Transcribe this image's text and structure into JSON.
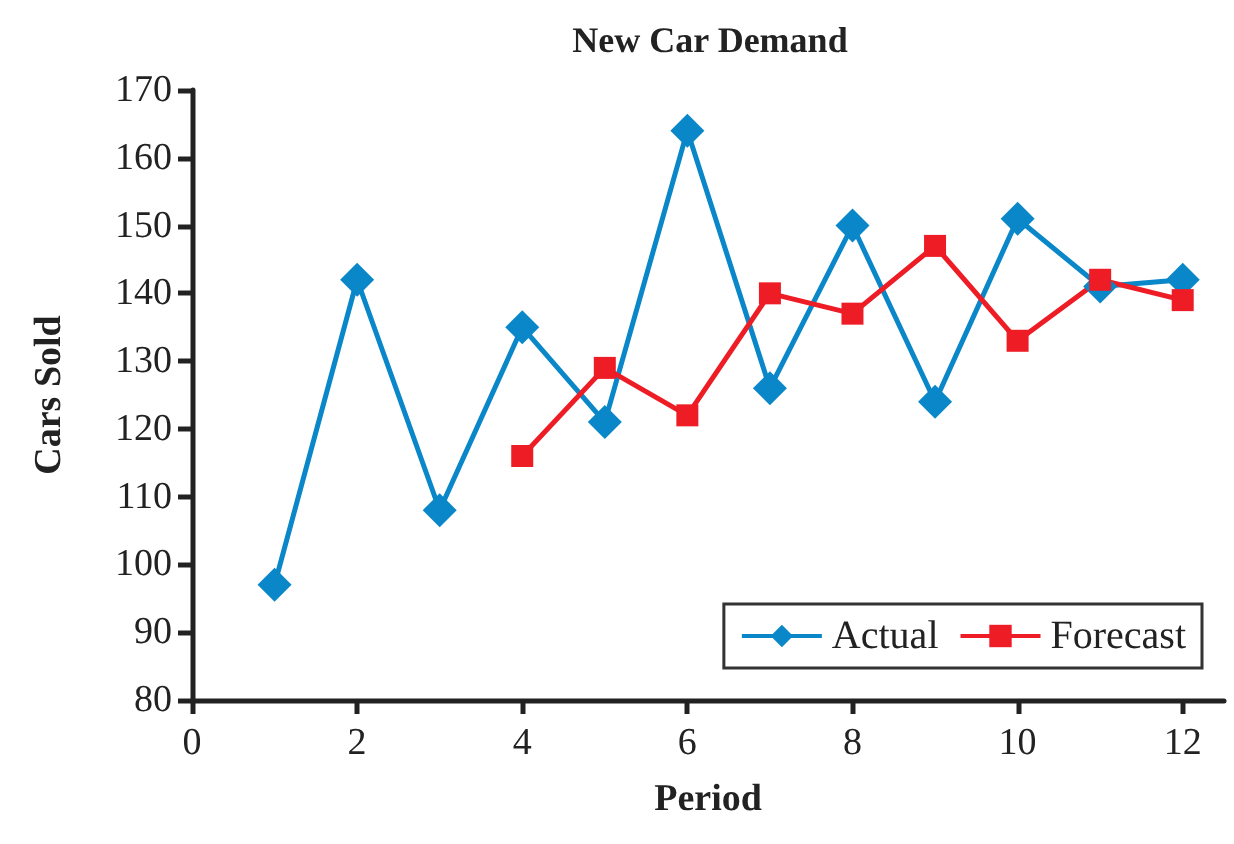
{
  "chart_data": {
    "type": "line",
    "title": "New Car Demand",
    "xlabel": "Period",
    "ylabel": "Cars Sold",
    "series": [
      {
        "name": "Actual",
        "color": "#0a87c9",
        "marker": "diamond",
        "x": [
          1,
          2,
          3,
          4,
          5,
          6,
          7,
          8,
          9,
          10,
          11,
          12
        ],
        "values": [
          97,
          142,
          108,
          135,
          121,
          164,
          126,
          150,
          124,
          151,
          141,
          142
        ]
      },
      {
        "name": "Forecast",
        "color": "#ee1c25",
        "marker": "square",
        "x": [
          4,
          5,
          6,
          7,
          8,
          9,
          10,
          11,
          12
        ],
        "values": [
          116,
          129,
          122,
          140,
          137,
          147,
          133,
          142,
          139
        ]
      }
    ],
    "xlim": [
      0,
      12.5
    ],
    "xticks": [
      0,
      2,
      4,
      6,
      8,
      10,
      12
    ],
    "ylim": [
      80,
      170
    ],
    "yticks": [
      80,
      90,
      100,
      110,
      120,
      130,
      140,
      150,
      160,
      170
    ],
    "grid": false,
    "legend": "bottom right",
    "line_style": "solid"
  }
}
